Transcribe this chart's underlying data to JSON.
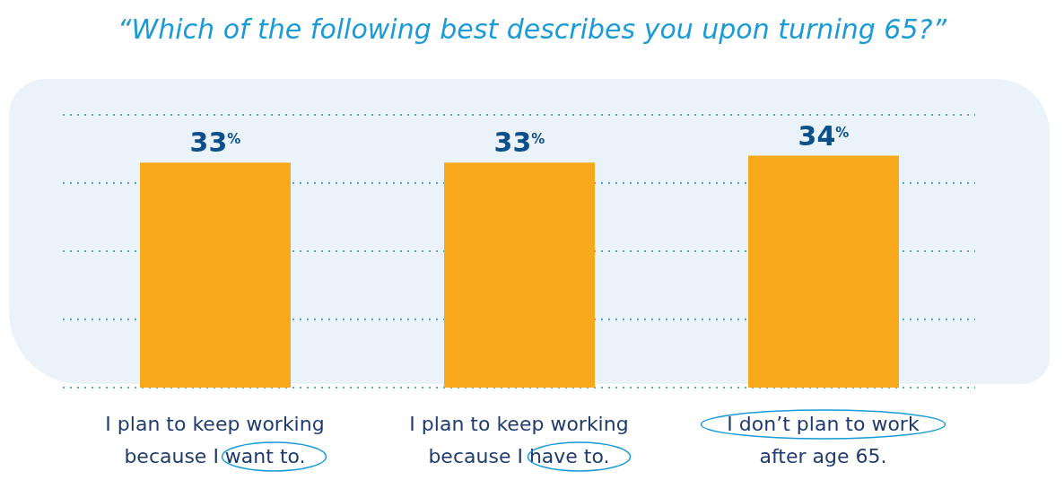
{
  "chart_data": {
    "type": "bar",
    "title": "“Which of the following best describes you upon turning 65?”",
    "categories": [
      "I plan to keep working because I want to.",
      "I plan to keep working because I have to.",
      "I don’t plan to work after age 65."
    ],
    "values": [
      33,
      33,
      34
    ],
    "color": "#f7a81b",
    "value_labels": [
      "33$^{%}$",
      "33$^{%}$",
      "34$^{%}$"
    ],
    "ylim": [
      0,
      40
    ],
    "yticks": [
      {
        "value": 0,
        "label": null
      },
      {
        "value": 10,
        "label": null
      },
      {
        "value": 20,
        "label": null
      },
      {
        "value": 30,
        "label": null
      },
      {
        "value": 40,
        "label": null
      }
    ],
    "tick_labels": "x",
    "grid": "y",
    "legend": false
  }
}
